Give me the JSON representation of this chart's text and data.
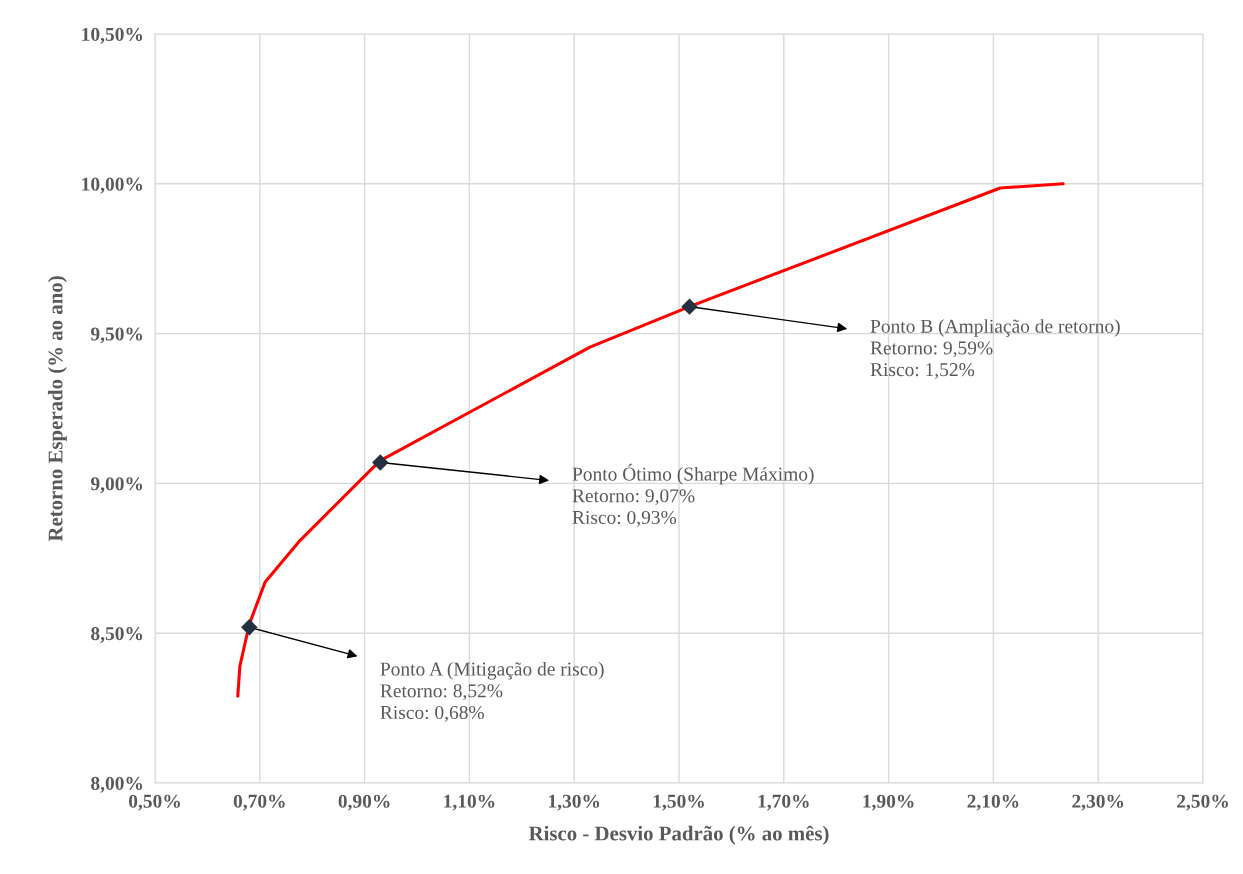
{
  "chart_data": {
    "type": "line",
    "xlabel": "Risco - Desvio Padrão (% ao mês)",
    "ylabel": "Retorno Esperado (% ao ano)",
    "series": [
      {
        "color": "#ff0000",
        "x": [
          0.658,
          0.662,
          0.68,
          0.71,
          0.777,
          0.929,
          1.33,
          1.52,
          2.113,
          2.233
        ],
        "values": [
          8.29,
          8.39,
          8.53,
          8.67,
          8.81,
          9.075,
          9.455,
          9.59,
          9.986,
          10.0
        ]
      },
      {
        "type": "scatter",
        "color": "#243040",
        "marker": "diamond",
        "x": [
          0.68,
          0.93,
          1.52
        ],
        "values": [
          8.52,
          9.07,
          9.59
        ]
      }
    ],
    "annotations": [
      {
        "text": "Ponto A (Mitigação de risco)\nRetorno: 8,52%\nRisco: 0,68%",
        "x": 0.68,
        "y": 8.52
      },
      {
        "text": "Ponto Ótimo (Sharpe Máximo)\nRetorno: 9,07%\nRisco: 0,93%",
        "x": 0.93,
        "y": 9.07
      },
      {
        "text": "Ponto B (Ampliação de retorno)\nRetorno: 9,59%\nRisco: 1,52%",
        "x": 1.52,
        "y": 9.59
      }
    ],
    "xlim": [
      0.5,
      2.5
    ],
    "xticks": [
      {
        "value": 0.5,
        "label": "0,50%"
      },
      {
        "value": 0.7,
        "label": "0,70%"
      },
      {
        "value": 0.9,
        "label": "0,90%"
      },
      {
        "value": 1.1,
        "label": "1,10%"
      },
      {
        "value": 1.3,
        "label": "1,30%"
      },
      {
        "value": 1.5,
        "label": "1,50%"
      },
      {
        "value": 1.7,
        "label": "1,70%"
      },
      {
        "value": 1.9,
        "label": "1,90%"
      },
      {
        "value": 2.1,
        "label": "2,10%"
      },
      {
        "value": 2.3,
        "label": "2,30%"
      },
      {
        "value": 2.5,
        "label": "2,50%"
      }
    ],
    "ylim": [
      8.0,
      10.5
    ],
    "yticks": [
      {
        "value": 8.0,
        "label": "8,00%"
      },
      {
        "value": 8.5,
        "label": "8,50%"
      },
      {
        "value": 9.0,
        "label": "9,00%"
      },
      {
        "value": 9.5,
        "label": "9,50%"
      },
      {
        "value": 10.0,
        "label": "10,00%"
      },
      {
        "value": 10.5,
        "label": "10,50%"
      }
    ],
    "grid": true,
    "legend": false
  }
}
